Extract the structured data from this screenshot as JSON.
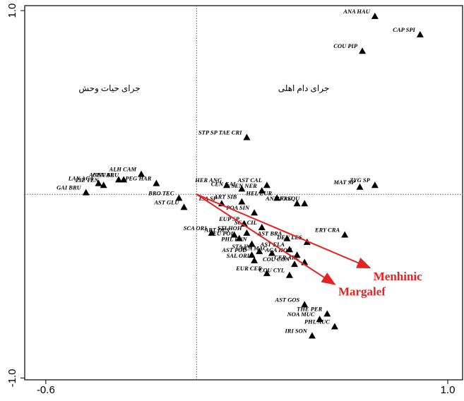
{
  "chart_data": {
    "type": "scatter",
    "labels": [
      "ANA HAU",
      "CAP SPI",
      "COU PIP",
      "STP SP TAE CRI",
      "ALH CAM",
      "CEN BRU",
      "ANNUAL",
      "LAN ACA",
      "ZIZ TEN",
      "GAI BRU",
      "PEG HAR",
      "BRO TEC",
      "AST GLU",
      "HER ANG",
      "CEN GAL",
      "AST CAL",
      "SEN NER",
      "HEL EUR",
      "AND FRU",
      "BIO SQU",
      "MAT SP",
      "ZYG SP",
      "ISA SP",
      "ART SIB",
      "POA SIN",
      "EUP SP",
      "ERY CRA",
      "SCA ORI",
      "ART DES",
      "TEU POL",
      "STI HOH",
      "SCA CIL",
      "DEN LES",
      "AST BRA",
      "PHL PUN",
      "AST POD",
      "ACA MAC",
      "AST ELA",
      "ACA HOH",
      "CER ARE",
      "COU CON",
      "SAL ORI",
      "STA INF",
      "EUR CER",
      "COU CYL",
      "AST GOS",
      "THE PER",
      "NOA MUC",
      "PHL AUC",
      "IRI SON"
    ],
    "x": [
      0.71,
      0.89,
      0.66,
      0.2,
      -0.22,
      -0.29,
      -0.31,
      -0.39,
      -0.37,
      -0.44,
      -0.16,
      -0.07,
      -0.05,
      0.12,
      0.18,
      0.28,
      0.26,
      0.32,
      0.4,
      0.43,
      0.65,
      0.71,
      0.1,
      0.18,
      0.23,
      0.19,
      0.59,
      0.06,
      0.15,
      0.17,
      0.2,
      0.26,
      0.44,
      0.36,
      0.22,
      0.22,
      0.3,
      0.37,
      0.4,
      0.43,
      0.39,
      0.23,
      0.25,
      0.28,
      0.37,
      0.43,
      0.52,
      0.49,
      0.55,
      0.46
    ],
    "y": [
      0.97,
      0.87,
      0.78,
      0.31,
      0.11,
      0.08,
      0.08,
      0.06,
      0.05,
      0.01,
      0.06,
      -0.02,
      -0.07,
      0.05,
      0.03,
      0.05,
      0.02,
      -0.02,
      -0.05,
      -0.05,
      0.04,
      0.05,
      -0.05,
      -0.04,
      -0.1,
      -0.16,
      -0.22,
      -0.21,
      -0.22,
      -0.24,
      -0.21,
      -0.18,
      -0.26,
      -0.24,
      -0.27,
      -0.33,
      -0.32,
      -0.3,
      -0.33,
      -0.37,
      -0.38,
      -0.36,
      -0.31,
      -0.43,
      -0.44,
      -0.6,
      -0.65,
      -0.68,
      -0.72,
      -0.77
    ],
    "color": "#000000",
    "vectors": [
      {
        "name": "Menhinic",
        "x": 0.69,
        "y": -0.4
      },
      {
        "name": "Margalef",
        "x": 0.55,
        "y": -0.49
      }
    ],
    "vector_color": "#e8201f",
    "annotations": [
      "جرای حیات وحش",
      "جرای دام اهلی"
    ],
    "xlim": [
      -0.684,
      1.059
    ],
    "ylim": [
      -1.01,
      1.027
    ],
    "xticks": [
      -0.6,
      {
        "value": 1,
        "label": "1.0"
      }
    ],
    "yticks": [
      {
        "value": -1,
        "label": "-1.0"
      },
      {
        "value": 1,
        "label": "1.0"
      }
    ]
  }
}
